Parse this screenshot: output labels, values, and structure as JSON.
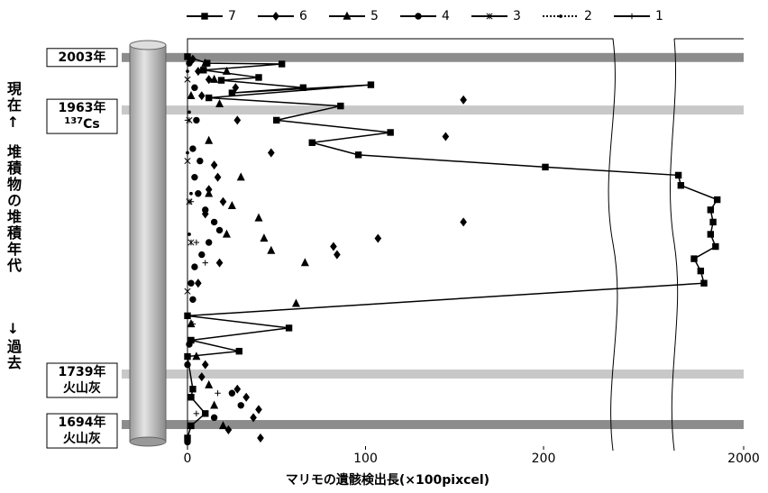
{
  "chart_data": {
    "type": "scatter",
    "x_label": "マリモの遺骸検出長(×100pixcel)",
    "side_labels": [
      "現在↑",
      "堆積物の堆積年代",
      "↓過去"
    ],
    "xlim": [
      0,
      240
    ],
    "xticks": [
      0,
      100,
      200
    ],
    "x2lim": [
      1580,
      2000
    ],
    "x2ticks": [
      2000
    ],
    "ylim": [
      0,
      100
    ],
    "events": [
      {
        "label": "2003年",
        "depth": 4.6,
        "shade": "#8c8c8c"
      },
      {
        "label": "1963年",
        "isotope_mass": "137",
        "isotope": "Cs",
        "depth": 17.5,
        "shade": "#c8c8c8"
      },
      {
        "label": "1739年",
        "material": "火山灰",
        "depth": 82.3,
        "shade": "#c8c8c8"
      },
      {
        "label": "1694年",
        "material": "火山灰",
        "depth": 94.7,
        "shade": "#8c8c8c"
      }
    ],
    "series": [
      {
        "name": "7",
        "marker": "square",
        "line": true,
        "color": "#000000",
        "x": [
          0,
          11,
          53,
          9,
          40,
          19,
          65,
          25,
          103,
          12,
          86,
          50,
          114,
          70,
          96,
          201,
          1605,
          1620,
          1840,
          1800,
          1815,
          1800,
          1830,
          1700,
          1740,
          1760,
          0,
          57,
          2,
          29,
          0,
          3,
          2,
          10,
          2,
          0
        ],
        "y": [
          4.4,
          6,
          6.2,
          7.7,
          9.5,
          10.2,
          12,
          13.3,
          11.3,
          14.5,
          16.5,
          20,
          23,
          25.5,
          28.5,
          31.5,
          33.5,
          36,
          39.5,
          42,
          45,
          48,
          51,
          54,
          57,
          60,
          68,
          71,
          74,
          76.7,
          78,
          86,
          88,
          92,
          95,
          98
        ]
      },
      {
        "name": "6",
        "marker": "diamond",
        "line": false,
        "color": "#000000",
        "x": [
          3,
          6,
          12,
          27,
          8,
          155,
          28,
          145,
          47,
          15,
          17,
          12,
          20,
          10,
          155,
          107,
          82,
          84,
          18,
          6,
          10,
          8,
          28,
          33,
          40,
          37,
          23,
          41
        ],
        "y": [
          5,
          8,
          10,
          12,
          14,
          15,
          20,
          24,
          28,
          31,
          34,
          37,
          40,
          43,
          45,
          49,
          51,
          53,
          55,
          60,
          80,
          83,
          86,
          88,
          91,
          93,
          96,
          98
        ]
      },
      {
        "name": "5",
        "marker": "triangle",
        "line": false,
        "color": "#000000",
        "x": [
          10,
          22,
          15,
          2,
          18,
          12,
          30,
          12,
          25,
          40,
          22,
          43,
          47,
          66,
          61,
          2,
          5,
          12,
          15,
          20
        ],
        "y": [
          6,
          8,
          10,
          14,
          16,
          25,
          34,
          38,
          41,
          44,
          48,
          49,
          52,
          55,
          65,
          70,
          78,
          85,
          90,
          95
        ]
      },
      {
        "name": "4",
        "marker": "circle",
        "line": false,
        "color": "#000000",
        "x": [
          1,
          4,
          5,
          3,
          7,
          4,
          6,
          10,
          15,
          18,
          12,
          8,
          4,
          2,
          3,
          1,
          0,
          25,
          30,
          15,
          0
        ],
        "y": [
          6,
          12,
          20,
          27,
          30,
          34,
          38,
          42,
          45,
          47,
          50,
          53,
          56,
          60,
          64,
          75,
          80,
          87,
          90,
          93,
          99
        ]
      },
      {
        "name": "3",
        "marker": "star",
        "line": false,
        "color": "#000000",
        "x": [
          0,
          1,
          0,
          1,
          2,
          0
        ],
        "y": [
          10,
          20,
          30,
          40,
          50,
          62
        ]
      },
      {
        "name": "2",
        "marker": "dot",
        "line": false,
        "color": "#000000",
        "x": [
          0,
          1,
          0,
          2,
          1
        ],
        "y": [
          8,
          18,
          28,
          38,
          48
        ]
      },
      {
        "name": "1",
        "marker": "plus",
        "line": false,
        "color": "#000000",
        "x": [
          0,
          2,
          5,
          10,
          3,
          17,
          5
        ],
        "y": [
          20,
          40,
          50,
          55,
          70,
          87,
          92
        ]
      }
    ]
  }
}
